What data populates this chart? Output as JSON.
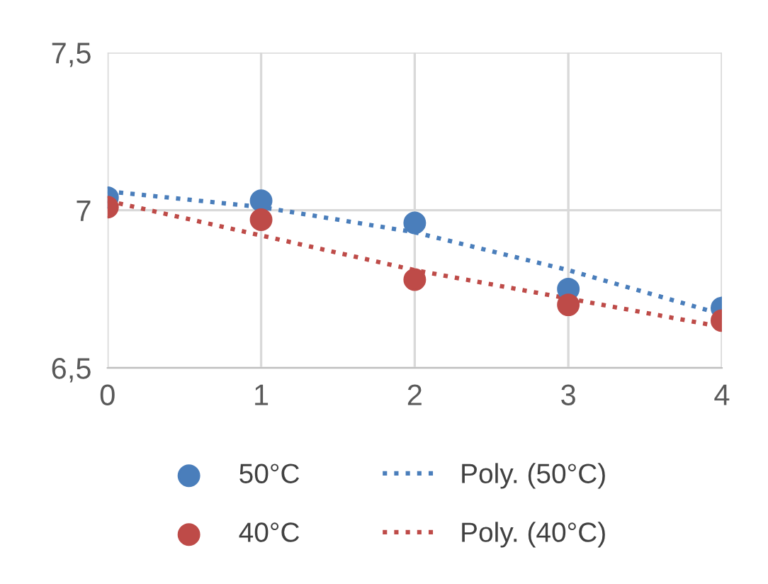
{
  "chart_data": {
    "type": "scatter",
    "x": [
      0,
      1,
      2,
      3,
      4
    ],
    "series": [
      {
        "name": "50°C",
        "color": "#4a7ebb",
        "values": [
          7.04,
          7.03,
          6.96,
          6.75,
          6.69
        ]
      },
      {
        "name": "40°C",
        "color": "#be4b48",
        "values": [
          7.01,
          6.97,
          6.78,
          6.7,
          6.65
        ]
      },
      {
        "name": "Poly. (50°C)",
        "type": "line",
        "line_style": "dotted",
        "marker": "none",
        "color": "#4a7ebb",
        "values": [
          7.06,
          7.01,
          6.93,
          6.81,
          6.67
        ]
      },
      {
        "name": "Poly. (40°C)",
        "type": "line",
        "line_style": "dotted",
        "marker": "none",
        "color": "#be4b48",
        "values": [
          7.03,
          6.92,
          6.81,
          6.72,
          6.63
        ]
      }
    ],
    "marker": "circle",
    "xlim": [
      0,
      4
    ],
    "xticks": [
      0,
      1,
      2,
      3,
      4
    ],
    "ylim": [
      6.5,
      7.5
    ],
    "yticks": [
      {
        "value": 6.5,
        "label": "6,5"
      },
      7,
      {
        "value": 7.5,
        "label": "7,5"
      }
    ],
    "grid": true,
    "legend": "bottom"
  }
}
